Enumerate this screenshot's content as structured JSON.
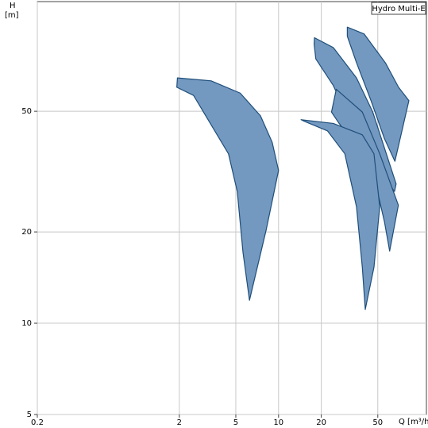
{
  "chart_data": {
    "type": "polygon",
    "title": "Hydro Multi-E",
    "xlabel": "Q [m³/h]",
    "ylabel": "H",
    "yunit": "[m]",
    "xscale": "log",
    "yscale": "log",
    "grid": true,
    "xlim": [
      0.2,
      110
    ],
    "ylim": [
      5,
      115
    ],
    "xticks": [
      0.2,
      2,
      5,
      10,
      20,
      50
    ],
    "yticks": [
      5,
      10,
      20,
      50
    ],
    "fill": "#7399c0",
    "stroke": "#1f4e7a",
    "series": [
      {
        "x": [
          1.94,
          3.35,
          5.37,
          7.46,
          9.02,
          10,
          8.2,
          6.24,
          5.62,
          5.12,
          4.44,
          2.52,
          1.92
        ],
        "y": [
          64.4,
          63,
          57.4,
          48.3,
          39.5,
          31.9,
          20.4,
          11.9,
          17.1,
          27.2,
          36.2,
          56.4,
          60
        ]
      },
      {
        "x": [
          30.5,
          40,
          56.8,
          70,
          82.8,
          66,
          55.7,
          44.8,
          35.4,
          30.5
        ],
        "y": [
          94.7,
          90,
          72,
          60,
          54.2,
          34.2,
          40.6,
          54.2,
          72.3,
          88.4
        ]
      },
      {
        "x": [
          17.9,
          24.3,
          35.4,
          46.1,
          67.3,
          65.6,
          51.6,
          38.9,
          36.1,
          32.2,
          24.3,
          18.3,
          17.8
        ],
        "y": [
          87.4,
          81.1,
          64.4,
          49.7,
          28.8,
          27.2,
          31.4,
          33.2,
          31.4,
          45.6,
          60.8,
          74.4,
          83.4
        ]
      },
      {
        "x": [
          25.5,
          38.9,
          51.6,
          69.8,
          60.6,
          55.7,
          47,
          38.9,
          32.2,
          26.7,
          23.6
        ],
        "y": [
          59.1,
          49.7,
          36.2,
          24.5,
          17.3,
          21.6,
          30.5,
          37.3,
          40.6,
          45.6,
          49.7
        ]
      },
      {
        "x": [
          14.4,
          24.3,
          38.9,
          47,
          51.6,
          47,
          40.8,
          38.9,
          35.4,
          29.3,
          22.1,
          15.1
        ],
        "y": [
          46.9,
          45.6,
          41.8,
          36.2,
          24.2,
          15.3,
          11.1,
          15.3,
          24.2,
          36.2,
          43.1,
          46.4
        ]
      }
    ]
  }
}
